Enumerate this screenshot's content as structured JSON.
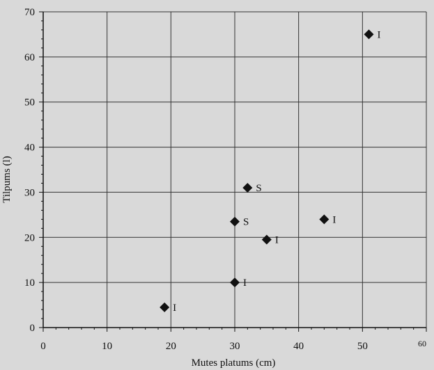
{
  "chart_data": {
    "type": "scatter",
    "title": "",
    "xlabel": "Mutes platums (cm)",
    "ylabel": "Tilpums (l)",
    "xlim": [
      0,
      60
    ],
    "ylim": [
      0,
      70
    ],
    "xticks": [
      0,
      10,
      20,
      30,
      40,
      50,
      60
    ],
    "yticks": [
      0,
      10,
      20,
      30,
      40,
      50,
      60,
      70
    ],
    "grid": true,
    "points": [
      {
        "x": 19,
        "y": 4.5,
        "label": "I"
      },
      {
        "x": 30,
        "y": 10,
        "label": "I"
      },
      {
        "x": 32,
        "y": 31,
        "label": "S"
      },
      {
        "x": 30,
        "y": 23.5,
        "label": "S"
      },
      {
        "x": 35,
        "y": 19.5,
        "label": "I"
      },
      {
        "x": 44,
        "y": 24,
        "label": "I"
      },
      {
        "x": 51,
        "y": 65,
        "label": "I"
      }
    ]
  }
}
